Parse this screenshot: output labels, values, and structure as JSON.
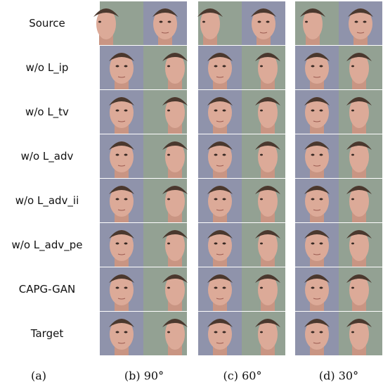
{
  "figure": {
    "row_labels": [
      "Source",
      "w/o L_ip",
      "w/o L_tv",
      "w/o L_adv",
      "w/o L_adv_ii",
      "w/o L_adv_pe",
      "CAPG-GAN",
      "Target"
    ],
    "captions": [
      "(a)",
      "(b) 90°",
      "(c) 60°",
      "(d) 30°"
    ]
  }
}
